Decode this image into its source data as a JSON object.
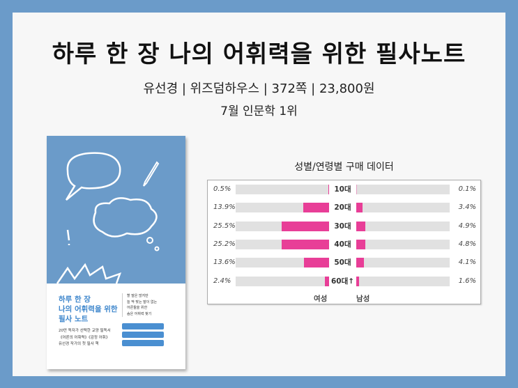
{
  "header": {
    "title": "하루 한 장 나의 어휘력을 위한 필사노트",
    "meta": "유선경 | 위즈덤하우스 | 372쪽 | 23,800원",
    "rank": "7월 인문학 1위"
  },
  "cover": {
    "title_lines": [
      "하루 한 장",
      "나의 어휘력을 위한",
      "필사 노트"
    ],
    "sub_lines": [
      "20만 독자가 선택한 교양 필독서",
      "《어른의 어휘력》《감정 어휘》",
      "유선경 작가의 첫 필사 책"
    ],
    "right_lines": [
      "할 말은 많지만",
      "늘 딱 맞는 말이 없는",
      "어른들을 위한",
      "숨은 어휘력 찾기"
    ],
    "colors": {
      "background": "#6b9bc9",
      "title": "#3d86cc"
    }
  },
  "chart_data": {
    "type": "bar",
    "title": "성별/연령별 구매 데이터",
    "categories": [
      "10대",
      "20대",
      "30대",
      "40대",
      "50대",
      "60대↑"
    ],
    "series": [
      {
        "name": "여성",
        "values": [
          0.5,
          13.9,
          25.5,
          25.2,
          13.6,
          2.4
        ],
        "labels": [
          "0.5%",
          "13.9%",
          "25.5%",
          "25.2%",
          "13.6%",
          "2.4%"
        ]
      },
      {
        "name": "남성",
        "values": [
          0.1,
          3.4,
          4.9,
          4.8,
          4.1,
          1.6
        ],
        "labels": [
          "0.1%",
          "3.4%",
          "4.9%",
          "4.8%",
          "4.1%",
          "1.6%"
        ]
      }
    ],
    "xlim": [
      0,
      50
    ],
    "bar_color": "#e83e97",
    "track_color": "#e1e1e1"
  }
}
